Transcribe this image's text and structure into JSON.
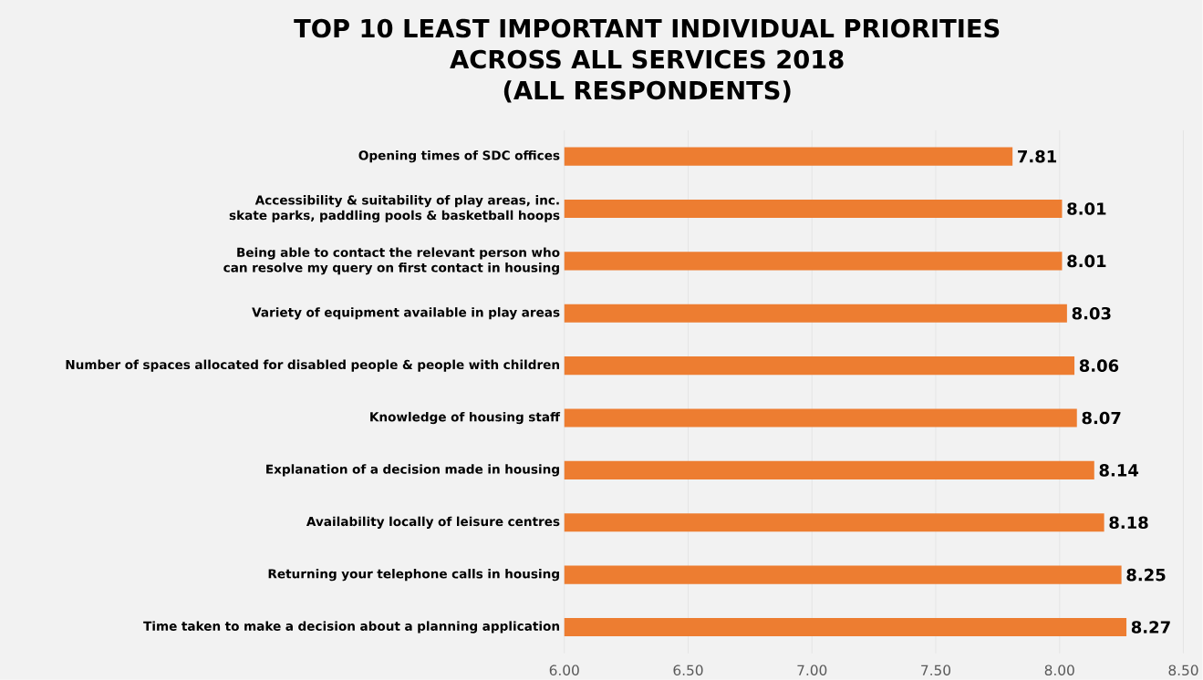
{
  "chart_data": {
    "type": "bar",
    "orientation": "horizontal",
    "title": "TOP 10 LEAST IMPORTANT INDIVIDUAL PRIORITIES ACROSS ALL SERVICES 2018",
    "subtitle": "(ALL RESPONDENTS)",
    "categories": [
      "Opening times of SDC offices",
      "Accessibility & suitability of play areas, inc. skate parks, paddling pools & basketball hoops",
      "Being able to contact the relevant person who can resolve my query on first contact in housing",
      "Variety of equipment available in play areas",
      "Number of spaces allocated for disabled people & people with children",
      "Knowledge of housing staff",
      "Explanation of a decision made in housing",
      "Availability locally of leisure centres",
      "Returning your telephone calls in housing",
      "Time taken to make a decision about a planning application"
    ],
    "values": [
      7.81,
      8.01,
      8.01,
      8.03,
      8.06,
      8.07,
      8.14,
      8.18,
      8.25,
      8.27
    ],
    "value_labels": [
      "7.81",
      "8.01",
      "8.01",
      "8.03",
      "8.06",
      "8.07",
      "8.14",
      "8.18",
      "8.25",
      "8.27"
    ],
    "color": "#ed7d31",
    "xlim": [
      6,
      8.5
    ],
    "xticks": [
      {
        "value": 6,
        "label": "6.00"
      },
      {
        "value": 6.5,
        "label": "6.50"
      },
      {
        "value": 7,
        "label": "7.00"
      },
      {
        "value": 7.5,
        "label": "7.50"
      },
      {
        "value": 8,
        "label": "8.00"
      },
      {
        "value": 8.5,
        "label": "8.50"
      }
    ],
    "grid": "x"
  }
}
